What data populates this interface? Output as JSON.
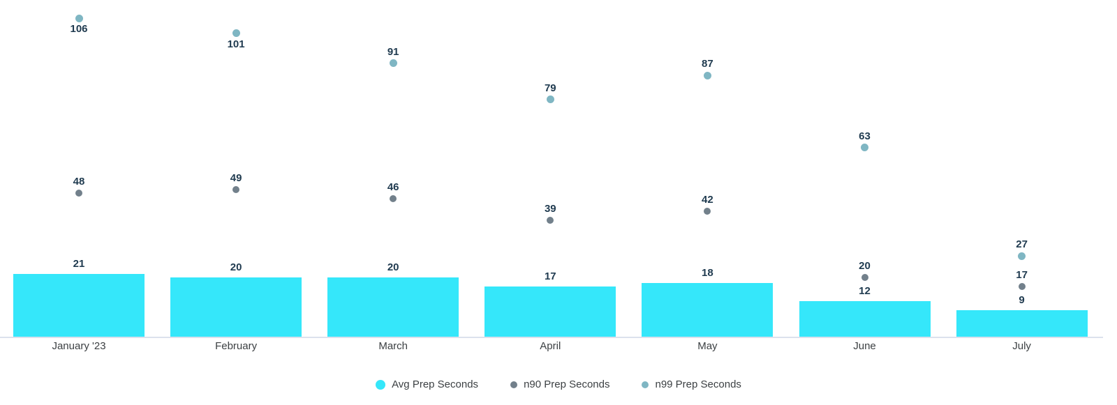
{
  "chart_data": {
    "type": "bar",
    "title": "",
    "categories": [
      "January '23",
      "February",
      "March",
      "April",
      "May",
      "June",
      "July"
    ],
    "series": [
      {
        "name": "Avg Prep Seconds",
        "render": "bar",
        "color": "#35e7fa",
        "values": [
          21,
          20,
          20,
          17,
          18,
          12,
          9
        ]
      },
      {
        "name": "n90 Prep Seconds",
        "render": "point",
        "color": "#72808b",
        "values": [
          48,
          49,
          46,
          39,
          42,
          20,
          17
        ]
      },
      {
        "name": "n99 Prep Seconds",
        "render": "point",
        "color": "#7fb6c3",
        "values": [
          106,
          101,
          91,
          79,
          87,
          63,
          27
        ]
      }
    ],
    "ylim": [
      0,
      112
    ],
    "grid": false,
    "legend_position": "bottom",
    "value_labels": "shown",
    "n99_label_side": [
      "below",
      "below",
      "above",
      "above",
      "above",
      "above",
      "above"
    ]
  },
  "colors": {
    "background": "#ffffff",
    "axis_line": "#dce1ed",
    "annotation_text": "#1f3a4f",
    "category_text": "#3c4043",
    "legend_text": "#3c4043"
  }
}
